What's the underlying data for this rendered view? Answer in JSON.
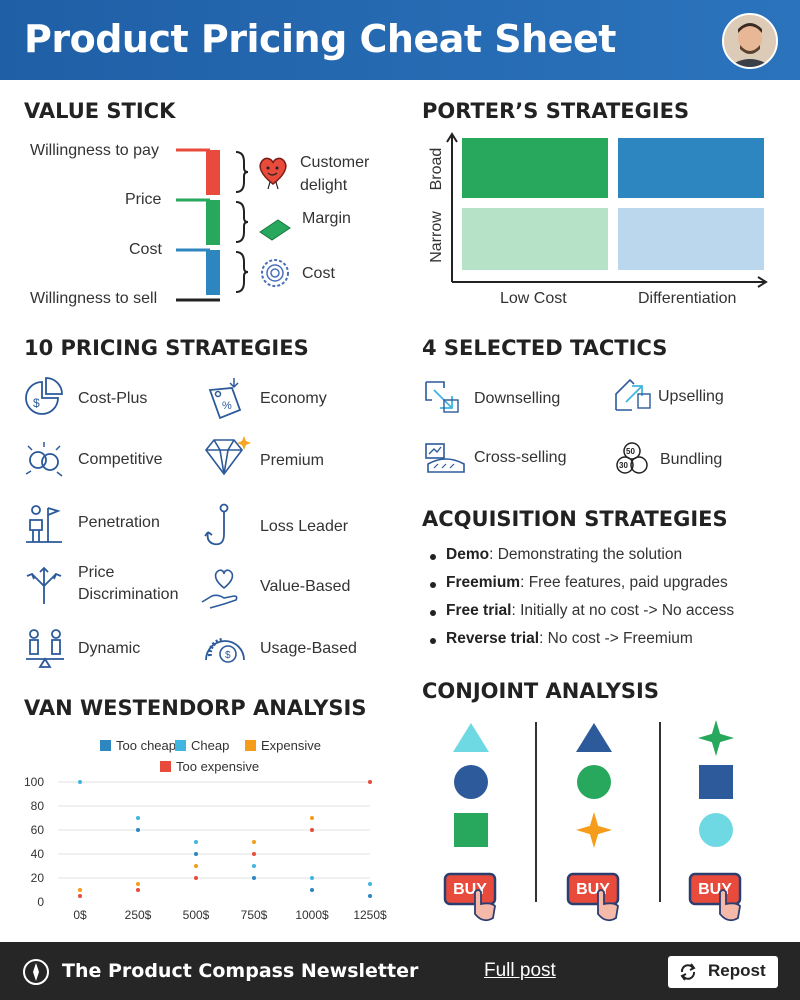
{
  "header": {
    "title": "Product Pricing Cheat Sheet"
  },
  "colors": {
    "header_blue": "#2468b0",
    "red": "#e84b3c",
    "green": "#27a85c",
    "blue": "#2e86c1",
    "light_blue": "#3fb6df",
    "orange": "#f59c1a",
    "navy": "#2c5a9a",
    "dark": "#262626"
  },
  "value_stick": {
    "title": "VALUE STICK",
    "levels": [
      "Willingness to pay",
      "Price",
      "Cost",
      "Willingness to sell"
    ],
    "segments": [
      {
        "label": "Customer delight",
        "line1": "Customer",
        "line2": "delight",
        "icon": "heart-icon",
        "color": "#e84b3c"
      },
      {
        "label": "Margin",
        "icon": "cash-icon",
        "color": "#27a85c"
      },
      {
        "label": "Cost",
        "icon": "gear-icon",
        "color": "#2e86c1"
      }
    ]
  },
  "porter": {
    "title": "PORTER’S STRATEGIES",
    "y_labels": [
      "Broad",
      "Narrow"
    ],
    "x_labels": [
      "Low Cost",
      "Differentiation"
    ]
  },
  "pricing": {
    "title": "10 PRICING STRATEGIES",
    "left": [
      {
        "label": "Cost-Plus",
        "icon": "pie-dollar-icon"
      },
      {
        "label": "Competitive",
        "icon": "clash-icon"
      },
      {
        "label": "Penetration",
        "icon": "flag-figure-icon"
      },
      {
        "label": "Price",
        "label2": "Discrimination",
        "icon": "split-arrows-icon"
      },
      {
        "label": "Dynamic",
        "icon": "balance-people-icon"
      }
    ],
    "right": [
      {
        "label": "Economy",
        "icon": "discount-tag-icon"
      },
      {
        "label": "Premium",
        "icon": "diamond-icon"
      },
      {
        "label": "Loss Leader",
        "icon": "hook-icon"
      },
      {
        "label": "Value-Based",
        "icon": "heart-hand-icon"
      },
      {
        "label": "Usage-Based",
        "icon": "speedometer-icon"
      }
    ]
  },
  "tactics": {
    "title": "4 SELECTED TACTICS",
    "items": [
      {
        "label": "Downselling",
        "icon": "down-arrow-box-icon"
      },
      {
        "label": "Upselling",
        "icon": "up-arrow-box-icon"
      },
      {
        "label": "Cross-selling",
        "icon": "cross-sell-icon"
      },
      {
        "label": "Bundling",
        "icon": "bundle-coins-icon"
      }
    ]
  },
  "acquisition": {
    "title": "ACQUISITION STRATEGIES",
    "items": [
      {
        "term": "Demo",
        "desc": ": Demonstrating the solution"
      },
      {
        "term": "Freemium",
        "desc": ": Free features, paid upgrades"
      },
      {
        "term": "Free trial",
        "desc": ": Initially at no cost -> No access"
      },
      {
        "term": "Reverse trial",
        "desc": ": No cost -> Freemium"
      }
    ]
  },
  "van_westendorp": {
    "title": "VAN WESTENDORP ANALYSIS"
  },
  "chart_data": {
    "type": "scatter",
    "title": "",
    "categories": [
      "0$",
      "250$",
      "500$",
      "750$",
      "1000$",
      "1250$"
    ],
    "yticks": [
      "100",
      "80",
      "60",
      "40",
      "20",
      "0"
    ],
    "ylim": [
      0,
      100
    ],
    "legend_position": "top",
    "series": [
      {
        "name": "Too cheap",
        "color": "#2e86c1",
        "values": [
          null,
          60,
          40,
          20,
          10,
          5
        ]
      },
      {
        "name": "Cheap",
        "color": "#3fb6df",
        "values": [
          100,
          70,
          50,
          30,
          20,
          15
        ]
      },
      {
        "name": "Expensive",
        "color": "#f59c1a",
        "values": [
          10,
          15,
          30,
          50,
          70,
          null
        ]
      },
      {
        "name": "Too expensive",
        "color": "#e84b3c",
        "values": [
          5,
          10,
          20,
          40,
          60,
          100
        ]
      }
    ]
  },
  "conjoint": {
    "title": "CONJOINT ANALYSIS",
    "columns": [
      {
        "shapes": [
          "triangle",
          "circle",
          "square"
        ],
        "colors": [
          "#6fd9e3",
          "#2c5a9a",
          "#27a85c"
        ]
      },
      {
        "shapes": [
          "triangle",
          "circle",
          "star"
        ],
        "colors": [
          "#2c5a9a",
          "#27a85c",
          "#f59c1a"
        ]
      },
      {
        "shapes": [
          "star",
          "square",
          "circle"
        ],
        "colors": [
          "#27a85c",
          "#2c5a9a",
          "#6fd9e3"
        ]
      }
    ],
    "buy_label": "BUY"
  },
  "footer": {
    "brand": "The Product Compass Newsletter",
    "link": "Full post",
    "repost": "Repost"
  }
}
